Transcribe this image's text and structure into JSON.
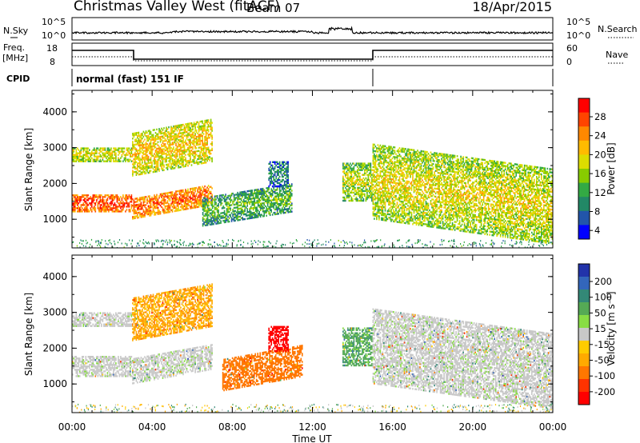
{
  "header": {
    "title": "Christmas Valley West (fitACF)",
    "beam": "Beam 07",
    "date": "18/Apr/2015"
  },
  "nsky_panel": {
    "left_label": "N.Sky",
    "right_label": "N.Search",
    "left_top_tick": "10^5",
    "left_bottom_tick": "10^0",
    "right_top_tick": "10^5",
    "right_bottom_tick": "10^0"
  },
  "freq_panel": {
    "left_label_line1": "Freq.",
    "left_label_line2": "[MHz]",
    "right_label": "Nave",
    "left_top_tick": "18",
    "left_bottom_tick": "8",
    "right_top_tick": "60",
    "right_bottom_tick": "0"
  },
  "cpid": {
    "label": "CPID",
    "value": "normal (fast) 151 IF"
  },
  "power_colorbar": {
    "label": "Power [dB]",
    "ticks": [
      "28",
      "24",
      "20",
      "16",
      "12",
      "8",
      "4"
    ],
    "colors": [
      "#ff0000",
      "#ff4400",
      "#ff8800",
      "#ffbb00",
      "#dddd00",
      "#88cc00",
      "#33aa44",
      "#228866",
      "#2255aa",
      "#0000ff"
    ]
  },
  "velocity_colorbar": {
    "label": "Velocity [m s⁻¹]",
    "ticks": [
      "200",
      "100",
      "50",
      "15",
      "-15",
      "-50",
      "-100",
      "-200"
    ],
    "colors": [
      "#2233aa",
      "#3366bb",
      "#338877",
      "#55aa55",
      "#88dd44",
      "#c8c8c8",
      "#ffcc00",
      "#ffaa00",
      "#ff7700",
      "#ff3300",
      "#ff0000"
    ]
  },
  "chart_data": [
    {
      "type": "heatmap",
      "parameter": "Power",
      "ylabel": "Slant Range [km]",
      "ylim": [
        200,
        4600
      ],
      "yticks": [
        "4000",
        "3000",
        "2000",
        "1000"
      ],
      "xlim": [
        "00:00",
        "24:00"
      ],
      "xticks": [
        "00:00",
        "04:00",
        "08:00",
        "12:00",
        "16:00",
        "20:00",
        "00:00"
      ],
      "features": [
        {
          "t_start": 0.0,
          "t_end": 3.0,
          "range_start": 1200,
          "range_end": 1700,
          "value": 28
        },
        {
          "t_start": 0.0,
          "t_end": 3.0,
          "range_start": 2600,
          "range_end": 3000,
          "value": 18
        },
        {
          "t_start": 3.0,
          "t_end": 7.0,
          "range_start": 1000,
          "range_end": 1600,
          "value": 26
        },
        {
          "t_start": 3.0,
          "t_end": 7.0,
          "range_start": 2200,
          "range_end": 3400,
          "value": 20
        },
        {
          "t_start": 6.5,
          "t_end": 11.0,
          "range_start": 800,
          "range_end": 1600,
          "value": 12
        },
        {
          "t_start": 9.8,
          "t_end": 10.8,
          "range_start": 1900,
          "range_end": 2600,
          "value": 8
        },
        {
          "t_start": 13.5,
          "t_end": 15.0,
          "range_start": 1500,
          "range_end": 2600,
          "value": 16
        },
        {
          "t_start": 15.0,
          "t_end": 24.0,
          "range_start": 1000,
          "range_end": 3100,
          "value": 18
        }
      ]
    },
    {
      "type": "heatmap",
      "parameter": "Velocity",
      "ylabel": "Slant Range [km]",
      "ylim": [
        200,
        4600
      ],
      "yticks": [
        "4000",
        "3000",
        "2000",
        "1000"
      ],
      "xlim": [
        "00:00",
        "24:00"
      ],
      "xticks": [
        "00:00",
        "04:00",
        "08:00",
        "12:00",
        "16:00",
        "20:00",
        "00:00"
      ],
      "xlabel": "Time UT",
      "features": [
        {
          "t_start": 0.0,
          "t_end": 3.0,
          "range_start": 1200,
          "range_end": 1800,
          "value": 0
        },
        {
          "t_start": 0.0,
          "t_end": 3.0,
          "range_start": 2600,
          "range_end": 3000,
          "value": 0
        },
        {
          "t_start": 3.0,
          "t_end": 7.0,
          "range_start": 1000,
          "range_end": 1700,
          "value": 0
        },
        {
          "t_start": 3.0,
          "t_end": 7.0,
          "range_start": 2200,
          "range_end": 3400,
          "value": -50
        },
        {
          "t_start": 7.5,
          "t_end": 11.5,
          "range_start": 800,
          "range_end": 1700,
          "value": -80
        },
        {
          "t_start": 9.8,
          "t_end": 10.8,
          "range_start": 1900,
          "range_end": 2600,
          "value": -200
        },
        {
          "t_start": 13.5,
          "t_end": 15.0,
          "range_start": 1500,
          "range_end": 2600,
          "value": 30
        },
        {
          "t_start": 15.0,
          "t_end": 24.0,
          "range_start": 1000,
          "range_end": 3100,
          "value": 0
        }
      ]
    }
  ]
}
